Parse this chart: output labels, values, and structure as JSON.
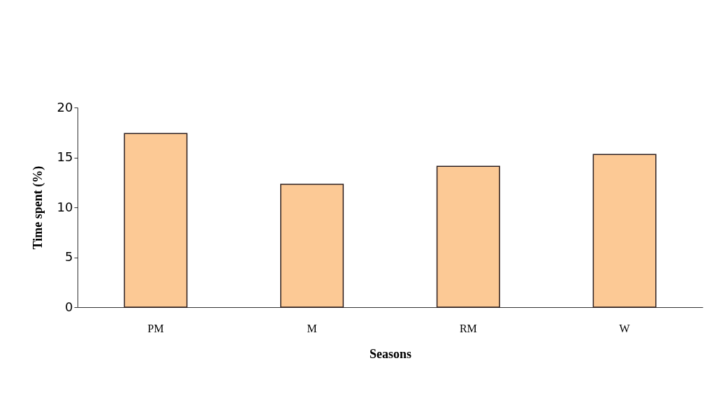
{
  "chart_data": {
    "type": "bar",
    "xlabel": "Seasons",
    "ylabel": "Time spent (%)",
    "categories": [
      "PM",
      "M",
      "RM",
      "W"
    ],
    "values": [
      17.4,
      12.3,
      14.1,
      15.3
    ],
    "color": "#fcc995",
    "ylim": [
      0,
      20
    ],
    "yticks": [
      0,
      5,
      10,
      15,
      20
    ],
    "grid": false
  }
}
